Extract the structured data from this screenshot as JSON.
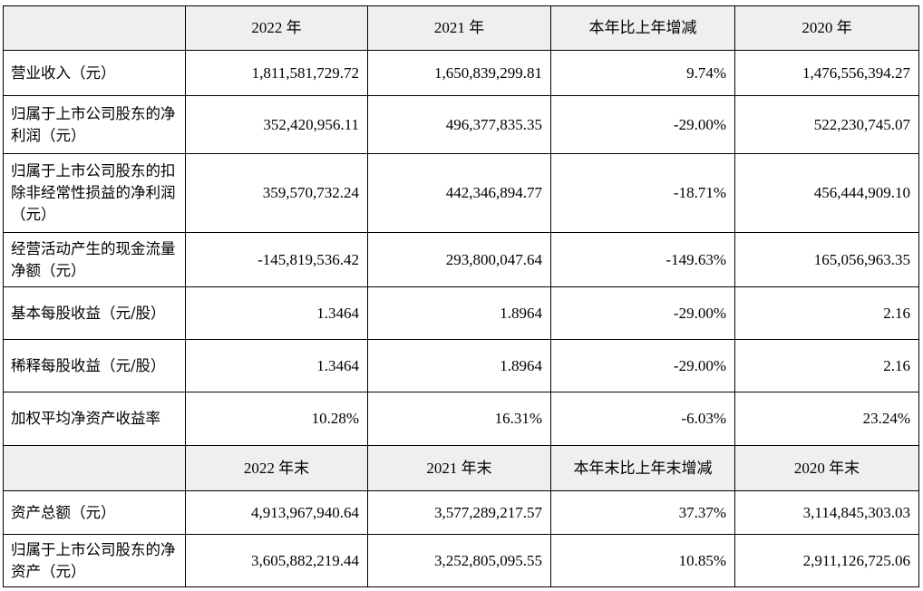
{
  "header1": [
    "2022 年",
    "2021 年",
    "本年比上年增减",
    "2020 年"
  ],
  "rows1": [
    {
      "label": "营业收入（元）",
      "values": [
        "1,811,581,729.72",
        "1,650,839,299.81",
        "9.74%",
        "1,476,556,394.27"
      ]
    },
    {
      "label": "归属于上市公司股东的净利润（元）",
      "values": [
        "352,420,956.11",
        "496,377,835.35",
        "-29.00%",
        "522,230,745.07"
      ]
    },
    {
      "label": "归属于上市公司股东的扣除非经常性损益的净利润（元）",
      "values": [
        "359,570,732.24",
        "442,346,894.77",
        "-18.71%",
        "456,444,909.10"
      ]
    },
    {
      "label": "经营活动产生的现金流量净额（元）",
      "values": [
        "-145,819,536.42",
        "293,800,047.64",
        "-149.63%",
        "165,056,963.35"
      ]
    },
    {
      "label": "基本每股收益（元/股）",
      "values": [
        "1.3464",
        "1.8964",
        "-29.00%",
        "2.16"
      ]
    },
    {
      "label": "稀释每股收益（元/股）",
      "values": [
        "1.3464",
        "1.8964",
        "-29.00%",
        "2.16"
      ]
    },
    {
      "label": "加权平均净资产收益率",
      "values": [
        "10.28%",
        "16.31%",
        "-6.03%",
        "23.24%"
      ]
    }
  ],
  "header2": [
    "2022 年末",
    "2021 年末",
    "本年末比上年末增减",
    "2020 年末"
  ],
  "rows2": [
    {
      "label": "资产总额（元）",
      "values": [
        "4,913,967,940.64",
        "3,577,289,217.57",
        "37.37%",
        "3,114,845,303.03"
      ]
    },
    {
      "label": "归属于上市公司股东的净资产（元）",
      "values": [
        "3,605,882,219.44",
        "3,252,805,095.55",
        "10.85%",
        "2,911,126,725.06"
      ]
    }
  ]
}
